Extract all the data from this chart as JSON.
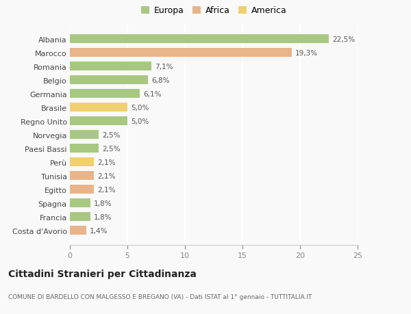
{
  "categories": [
    "Albania",
    "Marocco",
    "Romania",
    "Belgio",
    "Germania",
    "Brasile",
    "Regno Unito",
    "Norvegia",
    "Paesi Bassi",
    "Perù",
    "Tunisia",
    "Egitto",
    "Spagna",
    "Francia",
    "Costa d'Avorio"
  ],
  "values": [
    22.5,
    19.3,
    7.1,
    6.8,
    6.1,
    5.0,
    5.0,
    2.5,
    2.5,
    2.1,
    2.1,
    2.1,
    1.8,
    1.8,
    1.4
  ],
  "labels": [
    "22,5%",
    "19,3%",
    "7,1%",
    "6,8%",
    "6,1%",
    "5,0%",
    "5,0%",
    "2,5%",
    "2,5%",
    "2,1%",
    "2,1%",
    "2,1%",
    "1,8%",
    "1,8%",
    "1,4%"
  ],
  "colors": [
    "#a8c882",
    "#e8b48a",
    "#a8c882",
    "#a8c882",
    "#a8c882",
    "#f0d070",
    "#a8c882",
    "#a8c882",
    "#a8c882",
    "#f0d070",
    "#e8b48a",
    "#e8b48a",
    "#a8c882",
    "#a8c882",
    "#e8b48a"
  ],
  "legend_labels": [
    "Europa",
    "Africa",
    "America"
  ],
  "legend_colors": [
    "#a8c882",
    "#e8b48a",
    "#f0d070"
  ],
  "xlim": [
    0,
    25
  ],
  "xticks": [
    0,
    5,
    10,
    15,
    20,
    25
  ],
  "title": "Cittadini Stranieri per Cittadinanza",
  "subtitle": "COMUNE DI BARDELLO CON MALGESSO E BREGANO (VA) - Dati ISTAT al 1° gennaio - TUTTITALIA.IT",
  "bg_color": "#f9f9f9",
  "grid_color": "#ffffff",
  "bar_height": 0.65
}
